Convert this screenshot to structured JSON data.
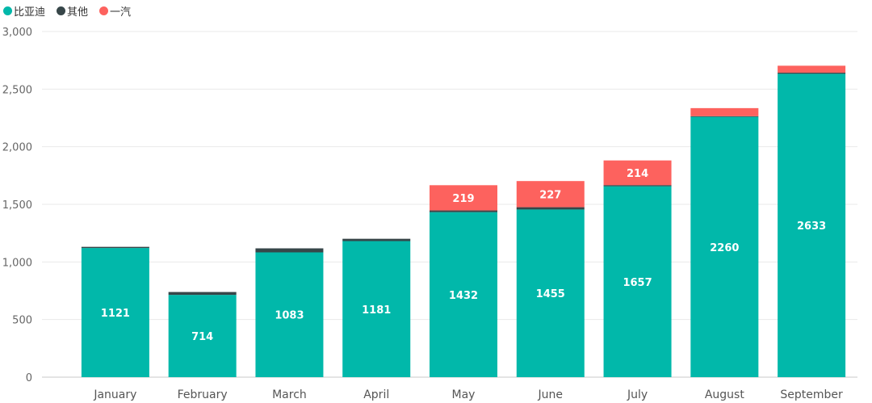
{
  "chart_data": {
    "type": "bar",
    "stacked": true,
    "categories": [
      "January",
      "February",
      "March",
      "April",
      "May",
      "June",
      "July",
      "August",
      "September"
    ],
    "series": [
      {
        "name": "比亚迪",
        "color": "#01b8aa",
        "values": [
          1121,
          714,
          1083,
          1181,
          1432,
          1455,
          1657,
          2260,
          2633
        ]
      },
      {
        "name": "其他",
        "color": "#374649",
        "values": [
          10,
          25,
          35,
          20,
          15,
          20,
          10,
          5,
          10
        ]
      },
      {
        "name": "一汽",
        "color": "#fd625e",
        "values": [
          0,
          0,
          0,
          0,
          219,
          227,
          214,
          70,
          60
        ]
      }
    ],
    "labels": [
      {
        "series": 0,
        "shown": [
          true,
          true,
          true,
          true,
          true,
          true,
          true,
          true,
          true
        ]
      },
      {
        "series": 2,
        "shown": [
          false,
          false,
          false,
          false,
          true,
          true,
          true,
          false,
          false
        ]
      }
    ],
    "ylim": [
      0,
      3000
    ],
    "yticks": [
      0,
      500,
      1000,
      1500,
      2000,
      2500,
      3000
    ],
    "ytick_labels": [
      "0",
      "500",
      "1,000",
      "1,500",
      "2,000",
      "2,500",
      "3,000"
    ],
    "grid": true,
    "legend_position": "top-left"
  }
}
